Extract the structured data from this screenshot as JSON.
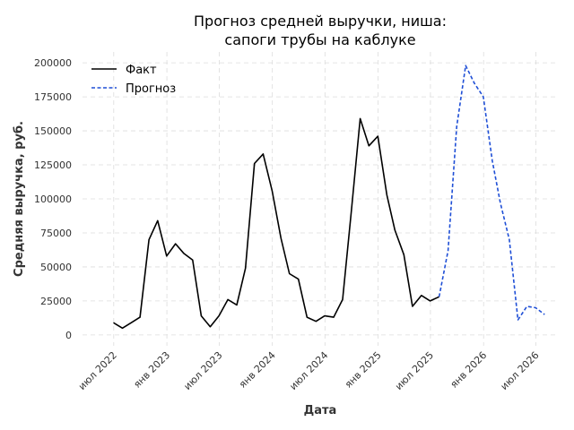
{
  "chart_data": {
    "type": "line",
    "title": [
      "Прогноз средней выручки, ниша:",
      "сапоги трубы на каблуке"
    ],
    "xlabel": "Дата",
    "ylabel": "Средняя выручка, руб.",
    "ylim": [
      -8000,
      208000
    ],
    "xlim": [
      "2022-03-15",
      "2026-09-15"
    ],
    "y_ticks": [
      {
        "v": 0,
        "label": "0"
      },
      {
        "v": 25000,
        "label": "25000"
      },
      {
        "v": 50000,
        "label": "50000"
      },
      {
        "v": 75000,
        "label": "75000"
      },
      {
        "v": 100000,
        "label": "100000"
      },
      {
        "v": 125000,
        "label": "125000"
      },
      {
        "v": 150000,
        "label": "150000"
      },
      {
        "v": 175000,
        "label": "175000"
      },
      {
        "v": 200000,
        "label": "200000"
      }
    ],
    "x_ticks": [
      {
        "date": "2022-07-01",
        "label": "июл 2022"
      },
      {
        "date": "2023-01-01",
        "label": "янв 2023"
      },
      {
        "date": "2023-07-01",
        "label": "июл 2023"
      },
      {
        "date": "2024-01-01",
        "label": "янв 2024"
      },
      {
        "date": "2024-07-01",
        "label": "июл 2024"
      },
      {
        "date": "2025-01-01",
        "label": "янв 2025"
      },
      {
        "date": "2025-07-01",
        "label": "июл 2025"
      },
      {
        "date": "2026-01-01",
        "label": "янв 2026"
      },
      {
        "date": "2026-07-01",
        "label": "июл 2026"
      }
    ],
    "grid": true,
    "legend_position": "top-left",
    "series": [
      {
        "name": "Факт",
        "color": "#000000",
        "style": "solid",
        "points": [
          {
            "x": "2022-06-30",
            "y": 9000
          },
          {
            "x": "2022-07-31",
            "y": 5000
          },
          {
            "x": "2022-08-31",
            "y": 9000
          },
          {
            "x": "2022-09-30",
            "y": 13000
          },
          {
            "x": "2022-10-31",
            "y": 70000
          },
          {
            "x": "2022-11-30",
            "y": 84000
          },
          {
            "x": "2022-12-31",
            "y": 58000
          },
          {
            "x": "2023-01-31",
            "y": 67000
          },
          {
            "x": "2023-02-28",
            "y": 60000
          },
          {
            "x": "2023-03-31",
            "y": 55000
          },
          {
            "x": "2023-04-30",
            "y": 14000
          },
          {
            "x": "2023-05-31",
            "y": 6000
          },
          {
            "x": "2023-06-30",
            "y": 14000
          },
          {
            "x": "2023-07-31",
            "y": 26000
          },
          {
            "x": "2023-08-31",
            "y": 22000
          },
          {
            "x": "2023-09-30",
            "y": 49000
          },
          {
            "x": "2023-10-31",
            "y": 126000
          },
          {
            "x": "2023-11-30",
            "y": 133000
          },
          {
            "x": "2023-12-31",
            "y": 106000
          },
          {
            "x": "2024-01-31",
            "y": 71000
          },
          {
            "x": "2024-02-29",
            "y": 45000
          },
          {
            "x": "2024-03-31",
            "y": 41000
          },
          {
            "x": "2024-04-30",
            "y": 13000
          },
          {
            "x": "2024-05-31",
            "y": 10000
          },
          {
            "x": "2024-06-30",
            "y": 14000
          },
          {
            "x": "2024-07-31",
            "y": 13000
          },
          {
            "x": "2024-08-31",
            "y": 26000
          },
          {
            "x": "2024-09-30",
            "y": 90000
          },
          {
            "x": "2024-10-31",
            "y": 159000
          },
          {
            "x": "2024-11-30",
            "y": 139000
          },
          {
            "x": "2024-12-31",
            "y": 146000
          },
          {
            "x": "2025-01-31",
            "y": 103000
          },
          {
            "x": "2025-02-28",
            "y": 77000
          },
          {
            "x": "2025-03-31",
            "y": 59000
          },
          {
            "x": "2025-04-30",
            "y": 21000
          },
          {
            "x": "2025-05-31",
            "y": 29000
          },
          {
            "x": "2025-06-30",
            "y": 25000
          },
          {
            "x": "2025-07-31",
            "y": 28000
          }
        ]
      },
      {
        "name": "Прогноз",
        "color": "#1f4fd6",
        "style": "dashed",
        "points": [
          {
            "x": "2025-07-31",
            "y": 28000
          },
          {
            "x": "2025-08-31",
            "y": 62000
          },
          {
            "x": "2025-09-30",
            "y": 153000
          },
          {
            "x": "2025-10-31",
            "y": 198000
          },
          {
            "x": "2025-11-30",
            "y": 185000
          },
          {
            "x": "2025-12-31",
            "y": 175000
          },
          {
            "x": "2026-01-31",
            "y": 128000
          },
          {
            "x": "2026-02-28",
            "y": 97000
          },
          {
            "x": "2026-03-31",
            "y": 70000
          },
          {
            "x": "2026-04-30",
            "y": 11000
          },
          {
            "x": "2026-05-31",
            "y": 21000
          },
          {
            "x": "2026-06-30",
            "y": 20000
          },
          {
            "x": "2026-07-31",
            "y": 15000
          }
        ]
      }
    ]
  }
}
